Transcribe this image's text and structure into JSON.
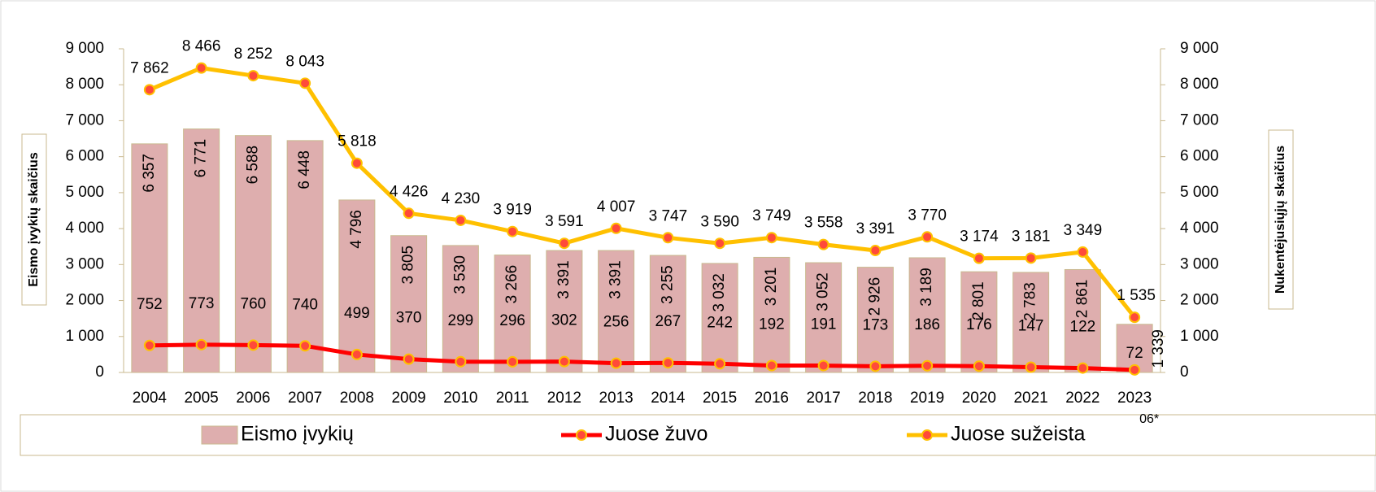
{
  "chart_data": {
    "type": "bar",
    "categories": [
      "2004",
      "2005",
      "2006",
      "2007",
      "2008",
      "2009",
      "2010",
      "2011",
      "2012",
      "2013",
      "2014",
      "2015",
      "2016",
      "2017",
      "2018",
      "2019",
      "2020",
      "2021",
      "2022",
      "2023 06*"
    ],
    "ylabel": "Eismo įvykių skaičius",
    "y2label": "Nukentėjusiųjų skaičius",
    "ylim": [
      0,
      9000
    ],
    "yticks": [
      0,
      {
        "value": 1000,
        "label": "1 000"
      },
      {
        "value": 2000,
        "label": "2 000"
      },
      {
        "value": 3000,
        "label": "3 000"
      },
      {
        "value": 4000,
        "label": "4 000"
      },
      {
        "value": 5000,
        "label": "5 000"
      },
      {
        "value": 6000,
        "label": "6 000"
      },
      {
        "value": 7000,
        "label": "7 000"
      },
      {
        "value": 8000,
        "label": "8 000"
      },
      {
        "value": 9000,
        "label": "9 000"
      }
    ],
    "y2lim": [
      0,
      9000
    ],
    "y2ticks": [
      0,
      {
        "value": 1000,
        "label": "1 000"
      },
      {
        "value": 2000,
        "label": "2 000"
      },
      {
        "value": 3000,
        "label": "3 000"
      },
      {
        "value": 4000,
        "label": "4 000"
      },
      {
        "value": 5000,
        "label": "5 000"
      },
      {
        "value": 6000,
        "label": "6 000"
      },
      {
        "value": 7000,
        "label": "7 000"
      },
      {
        "value": 8000,
        "label": "8 000"
      },
      {
        "value": 9000,
        "label": "9 000"
      }
    ],
    "legend": "bottom",
    "series": [
      {
        "name": "Eismo įvykių",
        "type": "bar",
        "color": "#deaeae",
        "values": [
          6357,
          6771,
          6588,
          6448,
          4796,
          3805,
          3530,
          3266,
          3391,
          3391,
          3255,
          3032,
          3201,
          3052,
          2926,
          3189,
          2801,
          2783,
          2861,
          1339
        ],
        "value_labels": [
          "6 357",
          "6 771",
          "6 588",
          "6 448",
          "4 796",
          "3 805",
          "3 530",
          "3 266",
          "3 391",
          "3 391",
          "3 255",
          "3 032",
          "3 201",
          "3 052",
          "2 926",
          "3 189",
          "2 801",
          "2 783",
          "2 861",
          "1 339"
        ]
      },
      {
        "name": "Juose žuvo",
        "type": "line",
        "axis": "y2",
        "color": "#ff0000",
        "values": [
          752,
          773,
          760,
          740,
          499,
          370,
          299,
          296,
          302,
          256,
          267,
          242,
          192,
          191,
          173,
          186,
          176,
          147,
          122,
          72
        ]
      },
      {
        "name": "Juose sužeista",
        "type": "line",
        "axis": "y2",
        "color": "#ffc000",
        "values": [
          7862,
          8466,
          8252,
          8043,
          5818,
          4426,
          4230,
          3919,
          3591,
          4007,
          3747,
          3590,
          3749,
          3558,
          3391,
          3770,
          3174,
          3181,
          3349,
          1535
        ],
        "value_labels": [
          "7 862",
          "8 466",
          "8 252",
          "8 043",
          "5 818",
          "4 426",
          "4 230",
          "3 919",
          "3 591",
          "4 007",
          "3 747",
          "3 590",
          "3 749",
          "3 558",
          "3 391",
          "3 770",
          "3 174",
          "3 181",
          "3 349",
          "1 535"
        ]
      }
    ]
  }
}
